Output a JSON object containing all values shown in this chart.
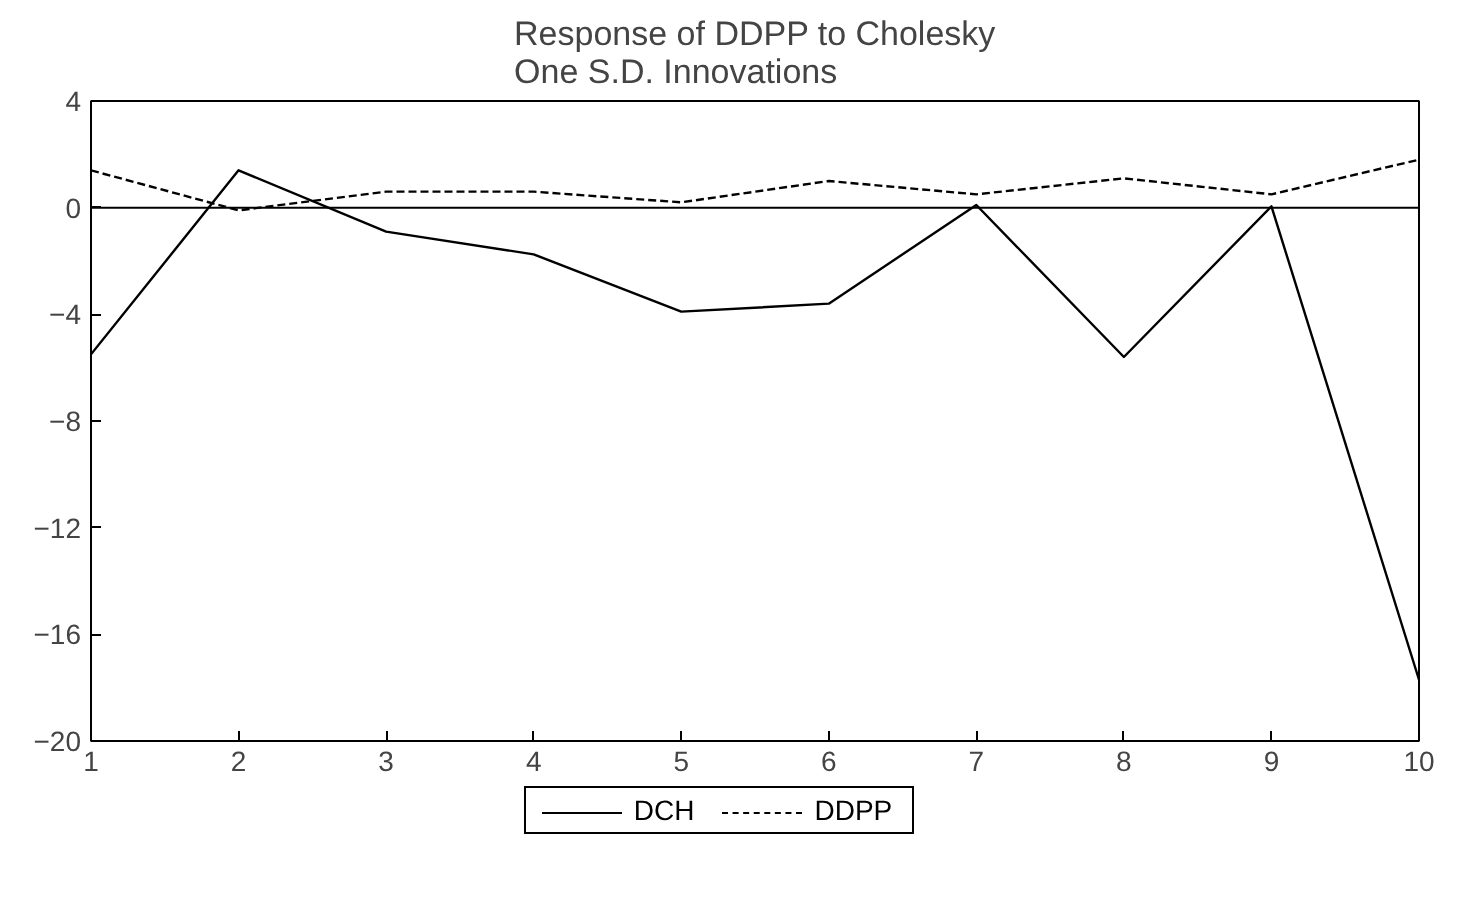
{
  "chart_data": {
    "type": "line",
    "title": "Response of DDPP to Cholesky\nOne S.D. Innovations",
    "x": [
      1,
      2,
      3,
      4,
      5,
      6,
      7,
      8,
      9,
      10
    ],
    "series": [
      {
        "name": "DCH",
        "color": "#000000",
        "line_style": "solid",
        "values": [
          -5.5,
          1.4,
          -0.9,
          -1.75,
          -3.9,
          -3.6,
          0.1,
          -5.6,
          0.05,
          -17.7
        ]
      },
      {
        "name": "DDPP",
        "color": "#000000",
        "line_style": "dashed",
        "values": [
          1.4,
          -0.1,
          0.6,
          0.6,
          0.2,
          1.0,
          0.5,
          1.1,
          0.5,
          1.8
        ]
      }
    ],
    "xlim": [
      1,
      10
    ],
    "xticks": [
      1,
      2,
      3,
      4,
      5,
      6,
      7,
      8,
      9,
      10
    ],
    "ylim": [
      -20,
      4
    ],
    "yticks": [
      -20,
      -16,
      -12,
      -8,
      -4,
      0,
      4
    ],
    "ref_lines": [
      {
        "axis": "y",
        "value": 0,
        "color": "#000000"
      }
    ],
    "grid": false,
    "legend": "bottom",
    "marker": "none"
  }
}
